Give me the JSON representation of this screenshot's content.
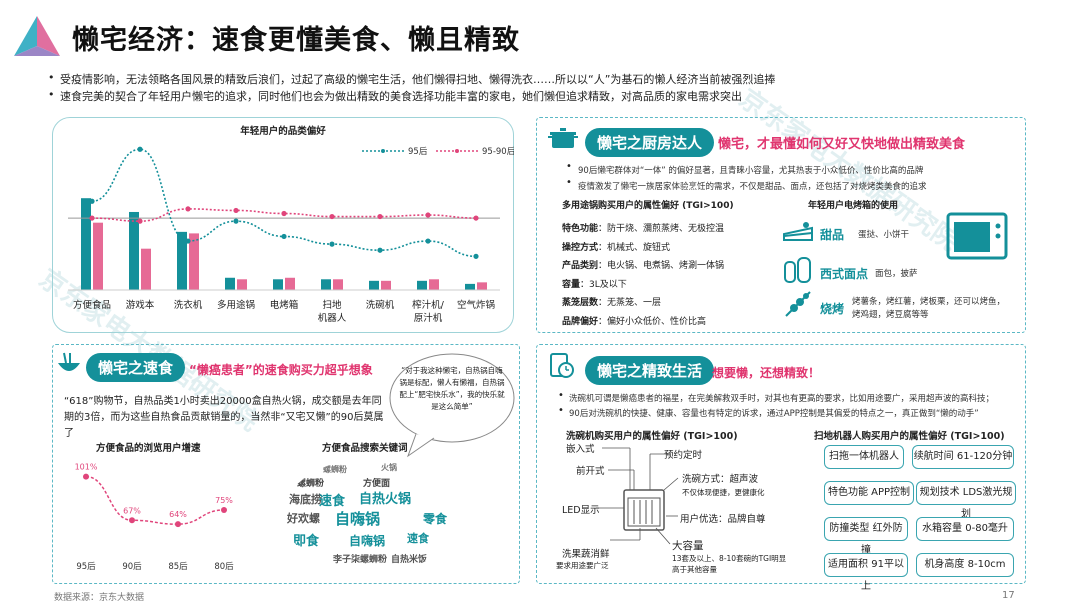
{
  "header": {
    "title": "懒宅经济：速食更懂美食、懒且精致",
    "bullets": [
      "受疫情影响，无法领略各国风景的精致后浪们，过起了高级的懒宅生活，他们懒得扫地、懒得洗衣……所以以“人”为基石的懒人经济当前被强烈追捧",
      "速食完美的契合了年轻用户懒宅的追求，同时他们也会为做出精致的美食选择功能丰富的家电，她们懒但追求精致，对高品质的家电需求突出"
    ]
  },
  "watermark": "京东家电大数据研究院",
  "chart_panel": {
    "chart_data": {
      "type": "bar+line",
      "title": "年轻用户的品类偏好",
      "categories": [
        "方便食品",
        "游戏本",
        "洗衣机",
        "多用途锅",
        "电烤箱",
        "扫地机器人",
        "洗碗机",
        "榨汁机/原汁机",
        "空气炸锅"
      ],
      "category_display": [
        [
          "方便食品"
        ],
        [
          "游戏本"
        ],
        [
          "洗衣机"
        ],
        [
          "多用途锅"
        ],
        [
          "电烤箱"
        ],
        [
          "扫地",
          "机器人"
        ],
        [
          "洗碗机"
        ],
        [
          "榨汁机/",
          "原汁机"
        ],
        [
          "空气炸锅"
        ]
      ],
      "series": [
        {
          "name": "95后",
          "bars": [
            60,
            51,
            38,
            8,
            7,
            7,
            6,
            6,
            4
          ],
          "line": [
            58,
            92,
            32,
            45,
            35,
            30,
            26,
            32,
            22
          ]
        },
        {
          "name": "95-90后",
          "bars": [
            44,
            27,
            37,
            7,
            8,
            7,
            6,
            7,
            5
          ],
          "line": [
            47,
            45,
            53,
            52,
            50,
            48,
            48,
            49,
            47
          ]
        }
      ],
      "reference_line": 47,
      "colors": {
        "95后": "#14909a",
        "95-90后": "#e0457b"
      }
    }
  },
  "kitchen": {
    "chip": "懒宅之厨房达人",
    "headline": "懒宅，才最懂如何又好又快地做出精致美食",
    "bullets": [
      "90后懒宅群体对“一体” 的偏好显著，且青睐小容量，尤其热衷于小众低价、性价比高的品牌",
      "疫情激发了懒宅一族居家体验烹饪的需求，不仅是甜品、面点，还包括了对烧烤类美食的追求"
    ],
    "left_title": "多用途锅购买用户的属性偏好 (TGI>100)",
    "attrs": [
      {
        "k": "特色功能",
        "v": "：防干烧、瀰煎蒸烤、无极控温"
      },
      {
        "k": "操控方式",
        "v": "：机械式、旋钮式"
      },
      {
        "k": "产品类别",
        "v": "：电火锅、电煮锅、烤涮一体锅"
      },
      {
        "k": "容量",
        "v": "：3L及以下"
      },
      {
        "k": "蒸笼层数",
        "v": "：无蒸笼、一层"
      },
      {
        "k": "品牌偏好",
        "v": "：偏好小众低价、性价比高"
      }
    ],
    "right_title": "年轻用户电烤箱的使用",
    "uses": [
      {
        "k": "甜品",
        "v": "蛋挞、小饼干"
      },
      {
        "k": "西式面点",
        "v": "面包，披萨"
      },
      {
        "k": "烧烤",
        "v": "烤薯条，烤红薯，烤板栗，还可以烤鱼，烤鸡翅，烤豆腐等等"
      }
    ]
  },
  "fastfood": {
    "chip": "懒宅之速食",
    "headline": "“懒癌患者”的速食购买力超乎想象",
    "bubble": "“对于我这种懒宅，自热锅自嗨锅是标配，懒人有懒福，自热锅配上“肥宅快乐水”，我的快乐就是这么简单”",
    "desc": "“618”购物节，自热品类1小时卖出20000盒自热火锅，成交额是去年同期的3倍，而为这些自热食品贡献销量的，当然非“又宅又懒”的90后莫属了",
    "line_chart": {
      "chart_data": {
        "type": "line",
        "title": "方便食品的浏览用户增速",
        "categories": [
          "95后",
          "90后",
          "85后",
          "80后"
        ],
        "values": [
          101,
          67,
          64,
          75
        ],
        "labels": [
          "101%",
          "67%",
          "64%",
          "75%"
        ],
        "color": "#e0457b"
      }
    },
    "cloud_title": "方便食品搜索关键词",
    "cloud_words": [
      "自嗨锅",
      "速食",
      "自热火锅",
      "海底捞",
      "好欢螺",
      "螺蛳粉",
      "即食",
      "零食",
      "自热米饭",
      "速食面",
      "方便面",
      "火锅",
      "李子柒螺蛳粉",
      "螺蛳粉"
    ]
  },
  "refined": {
    "chip": "懒宅之精致生活",
    "headline": "想要懒，还想精致！",
    "bullets": [
      "洗碗机可谓是懒癌患者的福星，在完美解救双手时，对其也有更高的要求，比如用途要广，采用超声波的高科技；",
      "90后对洗碗机的快捷、健康、容量也有特定的诉求，通过APP控制是其偏爱的特点之一，真正做到“懒的动手”"
    ],
    "dish_title": "洗碗机购买用户的属性偏好 (TGI>100)",
    "dish_labels": {
      "embed": "嵌入式",
      "front": "前开式",
      "led": "LED显示",
      "fruit": "洗果蔬消鲜",
      "fruit_sub": "要求用途要广泛",
      "timer": "预约定时",
      "wash": "洗碗方式：超声波",
      "wash_sub": "不仅体现便捷，更健康化",
      "brand": "用户优选：品牌自尊",
      "cap": "大容量",
      "cap_sub": "13套及以上、8-10套碗的TGI明显高于其他容量"
    },
    "robot_title": "扫地机器人购买用户的属性偏好 (TGI>100)",
    "robot_tags": [
      "扫拖一体机器人",
      "续航时间 61-120分钟",
      "特色功能 APP控制",
      "规划技术 LDS激光规划",
      "防撞类型 红外防撞",
      "水箱容量 0-80毫升",
      "适用面积 91平以上",
      "机身高度 8-10cm"
    ]
  },
  "footer": {
    "source": "数据来源：京东大数据",
    "page": "17"
  }
}
